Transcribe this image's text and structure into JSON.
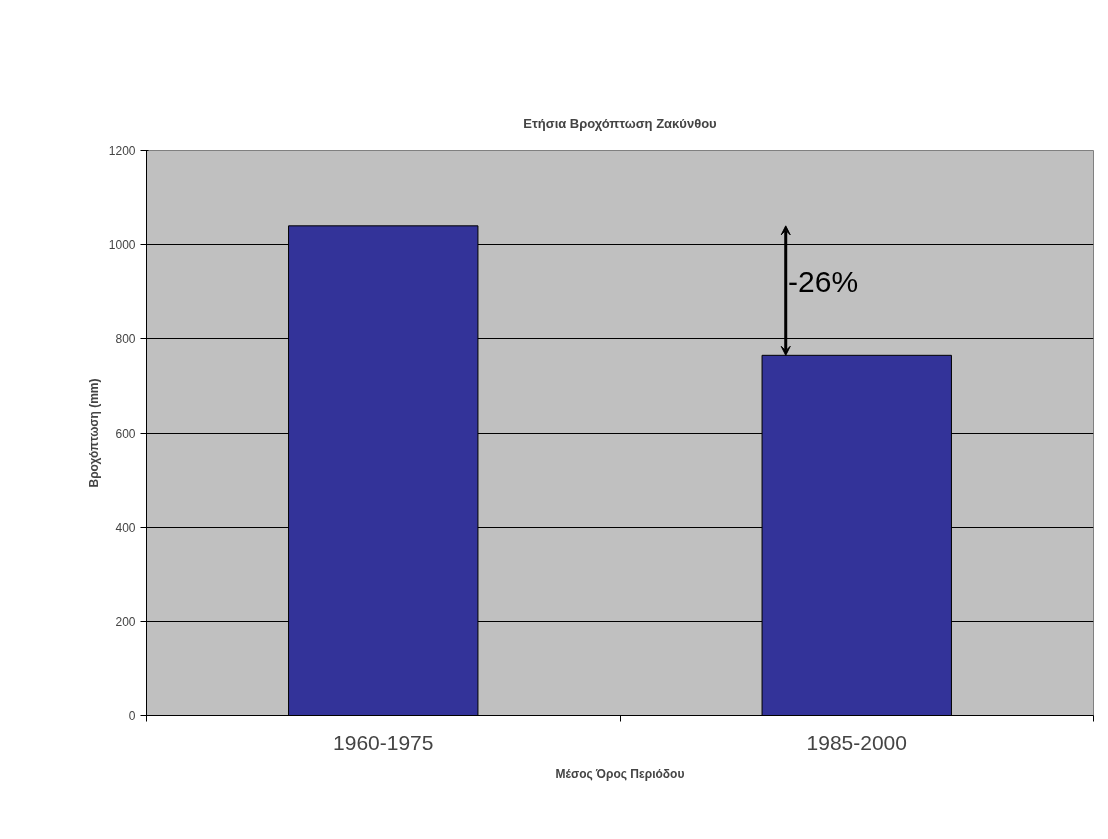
{
  "chart_data": {
    "type": "bar",
    "title": "Ετήσια Βροχόπτωση Ζακύνθου",
    "xlabel": "Μέσος Όρος Περιόδου",
    "ylabel": "Βροχόπτωση (mm)",
    "categories": [
      "1960-1975",
      "1985-2000"
    ],
    "values": [
      1040,
      765
    ],
    "color": "#333399",
    "ylim": [
      0,
      1200
    ],
    "yticks": [
      0,
      200,
      400,
      600,
      800,
      1000,
      1200
    ],
    "grid": "y",
    "annotations": [
      "-26%"
    ]
  }
}
